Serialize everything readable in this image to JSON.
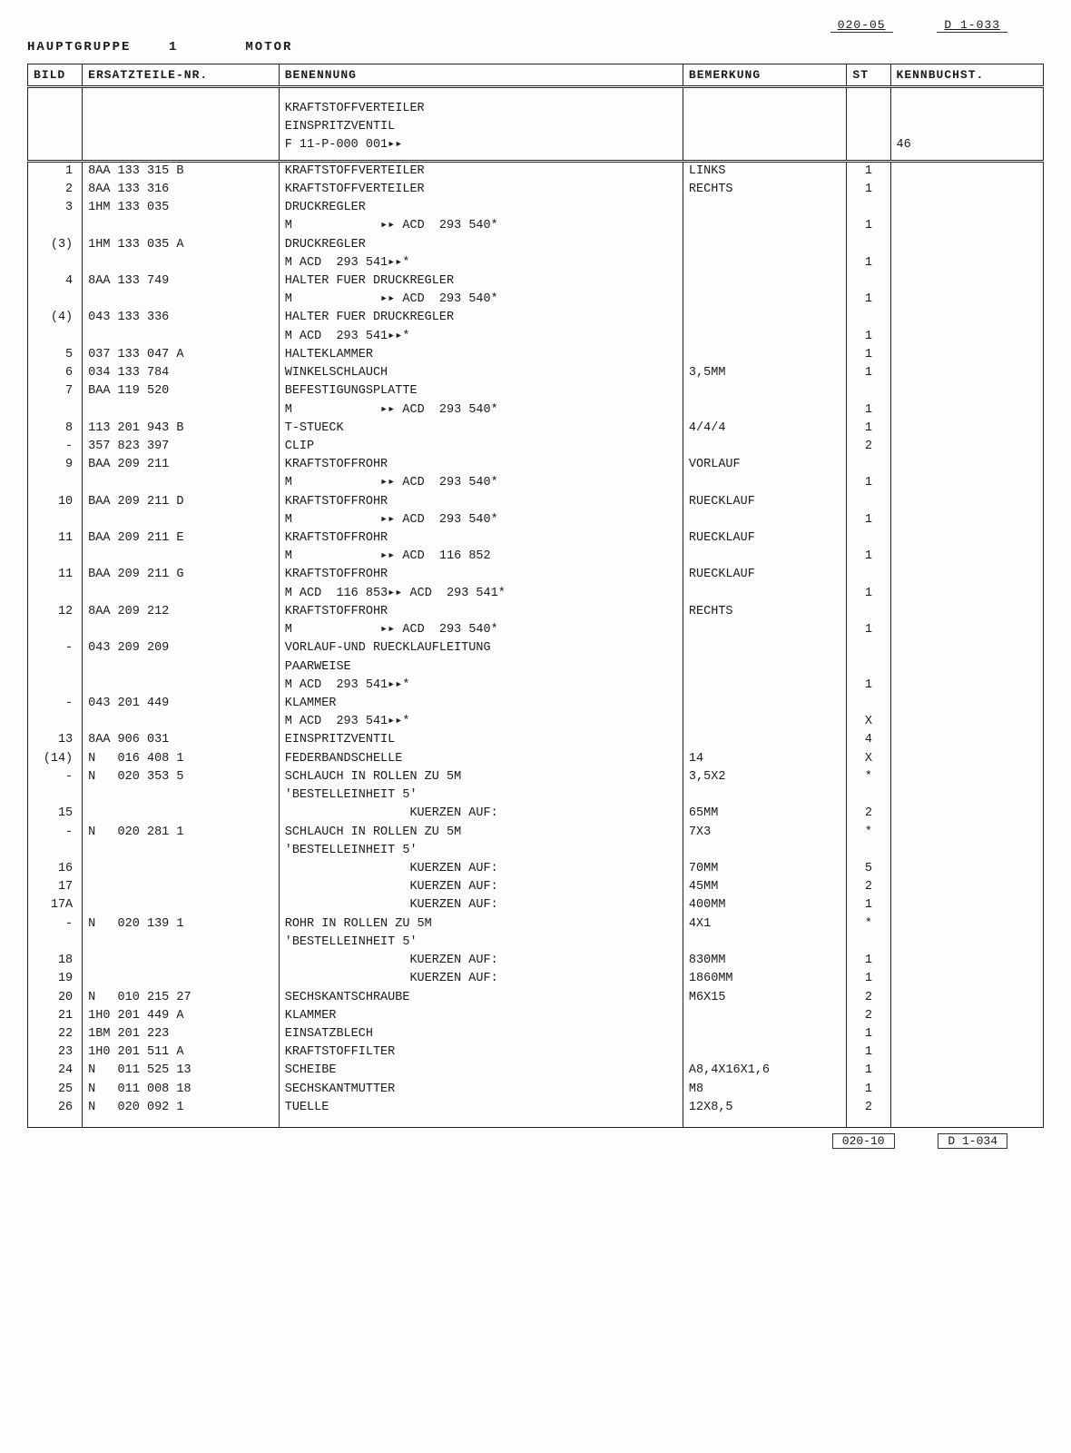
{
  "top_ref_left": "020-05",
  "top_ref_right": "D  1-033",
  "hauptgruppe_label": "HAUPTGRUPPE",
  "hauptgruppe_num": "1",
  "hauptgruppe_title": "MOTOR",
  "columns": {
    "bild": "BILD",
    "part": "ERSATZTEILE-NR.",
    "desc": "BENENNUNG",
    "rem": "BEMERKUNG",
    "st": "ST",
    "kenn": "KENNBUCHST."
  },
  "section_header": {
    "line1": "KRAFTSTOFFVERTEILER",
    "line2": "EINSPRITZVENTIL",
    "line3": "F 11-P-000 001▸▸",
    "kenn": "46"
  },
  "rows": [
    {
      "bild": "1",
      "part": "8AA 133 315 B",
      "desc": "KRAFTSTOFFVERTEILER",
      "rem": "LINKS",
      "st": "1",
      "kenn": ""
    },
    {
      "bild": "2",
      "part": "8AA 133 316",
      "desc": "KRAFTSTOFFVERTEILER",
      "rem": "RECHTS",
      "st": "1",
      "kenn": ""
    },
    {
      "bild": "3",
      "part": "1HM 133 035",
      "desc": "DRUCKREGLER",
      "rem": "",
      "st": "",
      "kenn": ""
    },
    {
      "bild": "",
      "part": "",
      "desc": "M            ▸▸ ACD  293 540*",
      "rem": "",
      "st": "1",
      "kenn": ""
    },
    {
      "bild": "(3)",
      "part": "1HM 133 035 A",
      "desc": "DRUCKREGLER",
      "rem": "",
      "st": "",
      "kenn": ""
    },
    {
      "bild": "",
      "part": "",
      "desc": "M ACD  293 541▸▸*",
      "rem": "",
      "st": "1",
      "kenn": ""
    },
    {
      "bild": "4",
      "part": "8AA 133 749",
      "desc": "HALTER FUER DRUCKREGLER",
      "rem": "",
      "st": "",
      "kenn": ""
    },
    {
      "bild": "",
      "part": "",
      "desc": "M            ▸▸ ACD  293 540*",
      "rem": "",
      "st": "1",
      "kenn": ""
    },
    {
      "bild": "(4)",
      "part": "043 133 336",
      "desc": "HALTER FUER DRUCKREGLER",
      "rem": "",
      "st": "",
      "kenn": ""
    },
    {
      "bild": "",
      "part": "",
      "desc": "M ACD  293 541▸▸*",
      "rem": "",
      "st": "1",
      "kenn": ""
    },
    {
      "bild": "5",
      "part": "037 133 047 A",
      "desc": "HALTEKLAMMER",
      "rem": "",
      "st": "1",
      "kenn": ""
    },
    {
      "bild": "6",
      "part": "034 133 784",
      "desc": "WINKELSCHLAUCH",
      "rem": "3,5MM",
      "st": "1",
      "kenn": ""
    },
    {
      "bild": "7",
      "part": "BAA 119 520",
      "desc": "BEFESTIGUNGSPLATTE",
      "rem": "",
      "st": "",
      "kenn": ""
    },
    {
      "bild": "",
      "part": "",
      "desc": "M            ▸▸ ACD  293 540*",
      "rem": "",
      "st": "1",
      "kenn": ""
    },
    {
      "bild": "8",
      "part": "113 201 943 B",
      "desc": "T-STUECK",
      "rem": "4/4/4",
      "st": "1",
      "kenn": ""
    },
    {
      "bild": "-",
      "part": "357 823 397",
      "desc": "CLIP",
      "rem": "",
      "st": "2",
      "kenn": ""
    },
    {
      "bild": "9",
      "part": "BAA 209 211",
      "desc": "KRAFTSTOFFROHR",
      "rem": "VORLAUF",
      "st": "",
      "kenn": ""
    },
    {
      "bild": "",
      "part": "",
      "desc": "M            ▸▸ ACD  293 540*",
      "rem": "",
      "st": "1",
      "kenn": ""
    },
    {
      "bild": "10",
      "part": "BAA 209 211 D",
      "desc": "KRAFTSTOFFROHR",
      "rem": "RUECKLAUF",
      "st": "",
      "kenn": ""
    },
    {
      "bild": "",
      "part": "",
      "desc": "M            ▸▸ ACD  293 540*",
      "rem": "",
      "st": "1",
      "kenn": ""
    },
    {
      "bild": "11",
      "part": "BAA 209 211 E",
      "desc": "KRAFTSTOFFROHR",
      "rem": "RUECKLAUF",
      "st": "",
      "kenn": ""
    },
    {
      "bild": "",
      "part": "",
      "desc": "M            ▸▸ ACD  116 852",
      "rem": "",
      "st": "1",
      "kenn": ""
    },
    {
      "bild": "11",
      "part": "BAA 209 211 G",
      "desc": "KRAFTSTOFFROHR",
      "rem": "RUECKLAUF",
      "st": "",
      "kenn": ""
    },
    {
      "bild": "",
      "part": "",
      "desc": "M ACD  116 853▸▸ ACD  293 541*",
      "rem": "",
      "st": "1",
      "kenn": ""
    },
    {
      "bild": "12",
      "part": "8AA 209 212",
      "desc": "KRAFTSTOFFROHR",
      "rem": "RECHTS",
      "st": "",
      "kenn": ""
    },
    {
      "bild": "",
      "part": "",
      "desc": "M            ▸▸ ACD  293 540*",
      "rem": "",
      "st": "1",
      "kenn": ""
    },
    {
      "bild": "-",
      "part": "043 209 209",
      "desc": "VORLAUF-UND RUECKLAUFLEITUNG",
      "rem": "",
      "st": "",
      "kenn": ""
    },
    {
      "bild": "",
      "part": "",
      "desc": "PAARWEISE",
      "rem": "",
      "st": "",
      "kenn": ""
    },
    {
      "bild": "",
      "part": "",
      "desc": "M ACD  293 541▸▸*",
      "rem": "",
      "st": "1",
      "kenn": ""
    },
    {
      "bild": "-",
      "part": "043 201 449",
      "desc": "KLAMMER",
      "rem": "",
      "st": "",
      "kenn": ""
    },
    {
      "bild": "",
      "part": "",
      "desc": "M ACD  293 541▸▸*",
      "rem": "",
      "st": "X",
      "kenn": ""
    },
    {
      "bild": "13",
      "part": "8AA 906 031",
      "desc": "EINSPRITZVENTIL",
      "rem": "",
      "st": "4",
      "kenn": ""
    },
    {
      "bild": "(14)",
      "part": "N   016 408 1",
      "desc": "FEDERBANDSCHELLE",
      "rem": "14",
      "st": "X",
      "kenn": ""
    },
    {
      "bild": "-",
      "part": "N   020 353 5",
      "desc": "SCHLAUCH IN ROLLEN ZU 5M",
      "rem": "3,5X2",
      "st": "*",
      "kenn": ""
    },
    {
      "bild": "",
      "part": "",
      "desc": "'BESTELLEINHEIT 5'",
      "rem": "",
      "st": "",
      "kenn": ""
    },
    {
      "bild": "15",
      "part": "",
      "desc": "                 KUERZEN AUF:",
      "rem": "65MM",
      "st": "2",
      "kenn": ""
    },
    {
      "bild": "-",
      "part": "N   020 281 1",
      "desc": "SCHLAUCH IN ROLLEN ZU 5M",
      "rem": "7X3",
      "st": "*",
      "kenn": ""
    },
    {
      "bild": "",
      "part": "",
      "desc": "'BESTELLEINHEIT 5'",
      "rem": "",
      "st": "",
      "kenn": ""
    },
    {
      "bild": "16",
      "part": "",
      "desc": "                 KUERZEN AUF:",
      "rem": "70MM",
      "st": "5",
      "kenn": ""
    },
    {
      "bild": "17",
      "part": "",
      "desc": "                 KUERZEN AUF:",
      "rem": "45MM",
      "st": "2",
      "kenn": ""
    },
    {
      "bild": "17A",
      "part": "",
      "desc": "                 KUERZEN AUF:",
      "rem": "400MM",
      "st": "1",
      "kenn": ""
    },
    {
      "bild": "-",
      "part": "N   020 139 1",
      "desc": "ROHR IN ROLLEN ZU 5M",
      "rem": "4X1",
      "st": "*",
      "kenn": ""
    },
    {
      "bild": "",
      "part": "",
      "desc": "'BESTELLEINHEIT 5'",
      "rem": "",
      "st": "",
      "kenn": ""
    },
    {
      "bild": "18",
      "part": "",
      "desc": "                 KUERZEN AUF:",
      "rem": "830MM",
      "st": "1",
      "kenn": ""
    },
    {
      "bild": "19",
      "part": "",
      "desc": "                 KUERZEN AUF:",
      "rem": "1860MM",
      "st": "1",
      "kenn": ""
    },
    {
      "bild": "20",
      "part": "N   010 215 27",
      "desc": "SECHSKANTSCHRAUBE",
      "rem": "M6X15",
      "st": "2",
      "kenn": ""
    },
    {
      "bild": "21",
      "part": "1H0 201 449 A",
      "desc": "KLAMMER",
      "rem": "",
      "st": "2",
      "kenn": ""
    },
    {
      "bild": "22",
      "part": "1BM 201 223",
      "desc": "EINSATZBLECH",
      "rem": "",
      "st": "1",
      "kenn": ""
    },
    {
      "bild": "23",
      "part": "1H0 201 511 A",
      "desc": "KRAFTSTOFFILTER",
      "rem": "",
      "st": "1",
      "kenn": ""
    },
    {
      "bild": "24",
      "part": "N   011 525 13",
      "desc": "SCHEIBE",
      "rem": "A8,4X16X1,6",
      "st": "1",
      "kenn": ""
    },
    {
      "bild": "25",
      "part": "N   011 008 18",
      "desc": "SECHSKANTMUTTER",
      "rem": "M8",
      "st": "1",
      "kenn": ""
    },
    {
      "bild": "26",
      "part": "N   020 092 1",
      "desc": "TUELLE",
      "rem": "12X8,5",
      "st": "2",
      "kenn": ""
    }
  ],
  "bottom_ref_left": "020-10",
  "bottom_ref_right": "D  1-034"
}
